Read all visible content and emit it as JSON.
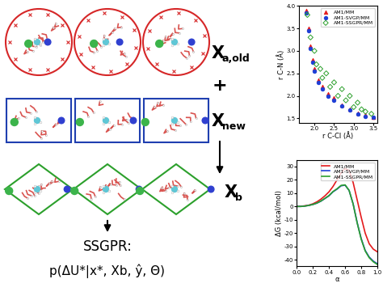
{
  "diagram": {
    "labels": [
      {
        "symbol": "X",
        "subscript": "a,old"
      },
      {
        "symbol": "X",
        "subscript": "new"
      },
      {
        "symbol": "X",
        "subscript": "b"
      }
    ],
    "operator": "+",
    "method": "SSGPR:",
    "formula": "p(ΔU*|x*, Xb, ŷ, Θ)"
  },
  "chart_data": [
    {
      "type": "scatter",
      "xlabel": "r C-Cl (Å)",
      "ylabel": "r C-N (Å)",
      "xlim": [
        1.6,
        3.6
      ],
      "xticks": [
        2.0,
        2.5,
        3.0,
        3.5
      ],
      "ylim": [
        1.4,
        4.0
      ],
      "yticks": [
        1.5,
        2.0,
        2.5,
        3.0,
        3.5,
        4.0
      ],
      "legend": "upper right",
      "grid": false,
      "series": [
        {
          "name": "AM1/MM",
          "color": "#e41a1c",
          "marker": "triangle",
          "x": [
            1.8,
            1.85,
            1.9,
            1.95,
            2.0,
            2.1,
            2.2,
            2.35,
            2.5,
            2.7,
            2.9,
            3.1,
            3.3,
            3.5
          ],
          "values": [
            3.9,
            3.5,
            3.1,
            2.8,
            2.6,
            2.35,
            2.2,
            2.05,
            1.95,
            1.8,
            1.7,
            1.62,
            1.57,
            1.53
          ]
        },
        {
          "name": "AM1-SVGP/MM",
          "color": "#1f3fd6",
          "marker": "circle",
          "x": [
            1.8,
            1.85,
            1.9,
            1.95,
            2.0,
            2.1,
            2.2,
            2.35,
            2.5,
            2.7,
            2.9,
            3.1,
            3.3,
            3.5
          ],
          "values": [
            3.85,
            3.45,
            3.05,
            2.75,
            2.55,
            2.3,
            2.15,
            2.0,
            1.9,
            1.77,
            1.68,
            1.6,
            1.55,
            1.52
          ]
        },
        {
          "name": "AM1-SSGPR/MM",
          "color": "#2ca02c",
          "marker": "diamond",
          "x": [
            1.82,
            1.9,
            2.0,
            2.05,
            2.15,
            2.2,
            2.3,
            2.4,
            2.5,
            2.6,
            2.7,
            2.8,
            2.9,
            3.0,
            3.1,
            3.2,
            3.3,
            3.45
          ],
          "values": [
            3.8,
            3.3,
            3.0,
            2.7,
            2.6,
            2.4,
            2.5,
            2.2,
            2.3,
            2.0,
            2.15,
            1.9,
            2.0,
            1.75,
            1.85,
            1.7,
            1.65,
            1.6
          ]
        }
      ]
    },
    {
      "type": "line",
      "xlabel": "α",
      "ylabel": "ΔG (kcal/mol)",
      "x": [
        0.0,
        0.05,
        0.1,
        0.15,
        0.2,
        0.25,
        0.3,
        0.35,
        0.4,
        0.45,
        0.5,
        0.55,
        0.6,
        0.65,
        0.7,
        0.75,
        0.8,
        0.85,
        0.9,
        0.95,
        1.0
      ],
      "xlim": [
        0.0,
        1.0
      ],
      "xticks": [
        {
          "value": 0.0,
          "label": "0.0"
        },
        0.2,
        0.4,
        0.6,
        0.8,
        {
          "value": 1.0,
          "label": "1.0"
        }
      ],
      "ylim": [
        -45,
        35
      ],
      "yticks": [
        -40,
        -30,
        -20,
        -10,
        0,
        10,
        20,
        30
      ],
      "legend": "upper right",
      "grid": false,
      "series": [
        {
          "name": "AM1/MM",
          "color": "#e41a1c",
          "line_style": "solid",
          "values": [
            0,
            0.1,
            0.5,
            1,
            2,
            3.5,
            5.5,
            8,
            11,
            15,
            20,
            25,
            28.5,
            27,
            18,
            5,
            -8,
            -20,
            -28,
            -32,
            -34
          ]
        },
        {
          "name": "AM1-SVGP/MM",
          "color": "#1f3fd6",
          "line_style": "solid",
          "values": [
            0,
            0,
            0.3,
            0.8,
            1.5,
            2.5,
            4,
            6,
            8,
            11,
            13,
            15.5,
            16,
            12,
            2,
            -12,
            -24,
            -33,
            -38,
            -41,
            -43
          ]
        },
        {
          "name": "AM1-SSGPR/MM",
          "color": "#2ca02c",
          "line_style": "solid",
          "values": [
            0,
            0,
            0.3,
            0.8,
            1.5,
            2.6,
            4.1,
            6.1,
            8.2,
            11.2,
            13.3,
            15.8,
            16.2,
            12.1,
            1.8,
            -12.3,
            -24.5,
            -33.4,
            -38.5,
            -41.5,
            -43.5
          ]
        }
      ]
    }
  ]
}
